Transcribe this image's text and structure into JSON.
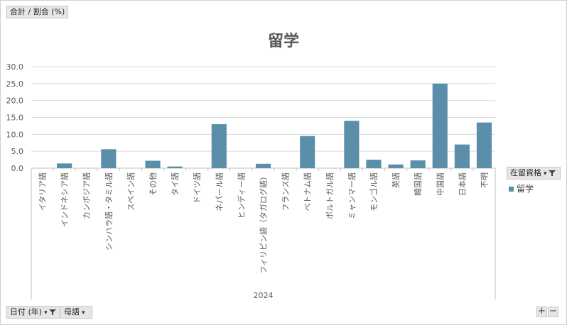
{
  "header": {
    "value_field": "合計 / 割合 (%)"
  },
  "footer": {
    "date_field": "日付 (年)",
    "language_field": "母語"
  },
  "series_filter": {
    "label": "在留資格"
  },
  "chart_data": {
    "type": "bar",
    "title": "留学",
    "group_label": "2024",
    "categories": [
      "イタリア語",
      "インドネシア語",
      "カンボジア語",
      "シンハラ語・タミル語",
      "スペイン語",
      "その他",
      "タイ語",
      "ドイツ語",
      "ネパール語",
      "ヒンディー語",
      "フィリピン語（タガログ語）",
      "フランス語",
      "ベトナム語",
      "ポルトガル語",
      "ミャンマー語",
      "モンゴル語",
      "英語",
      "韓国語",
      "中国語",
      "日本語",
      "不明"
    ],
    "series": [
      {
        "name": "留学",
        "color": "#5b8fa9",
        "values": [
          0,
          1.4,
          0,
          5.6,
          0,
          2.2,
          0.5,
          0,
          13.0,
          0,
          1.3,
          0,
          9.5,
          0,
          14.0,
          2.5,
          1.1,
          2.3,
          25.0,
          7.0,
          13.5
        ]
      }
    ],
    "ylim": [
      0,
      30
    ],
    "yticks": [
      "0.0",
      "5.0",
      "10.0",
      "15.0",
      "20.0",
      "25.0",
      "30.0"
    ],
    "grid": true,
    "legend": "right"
  }
}
